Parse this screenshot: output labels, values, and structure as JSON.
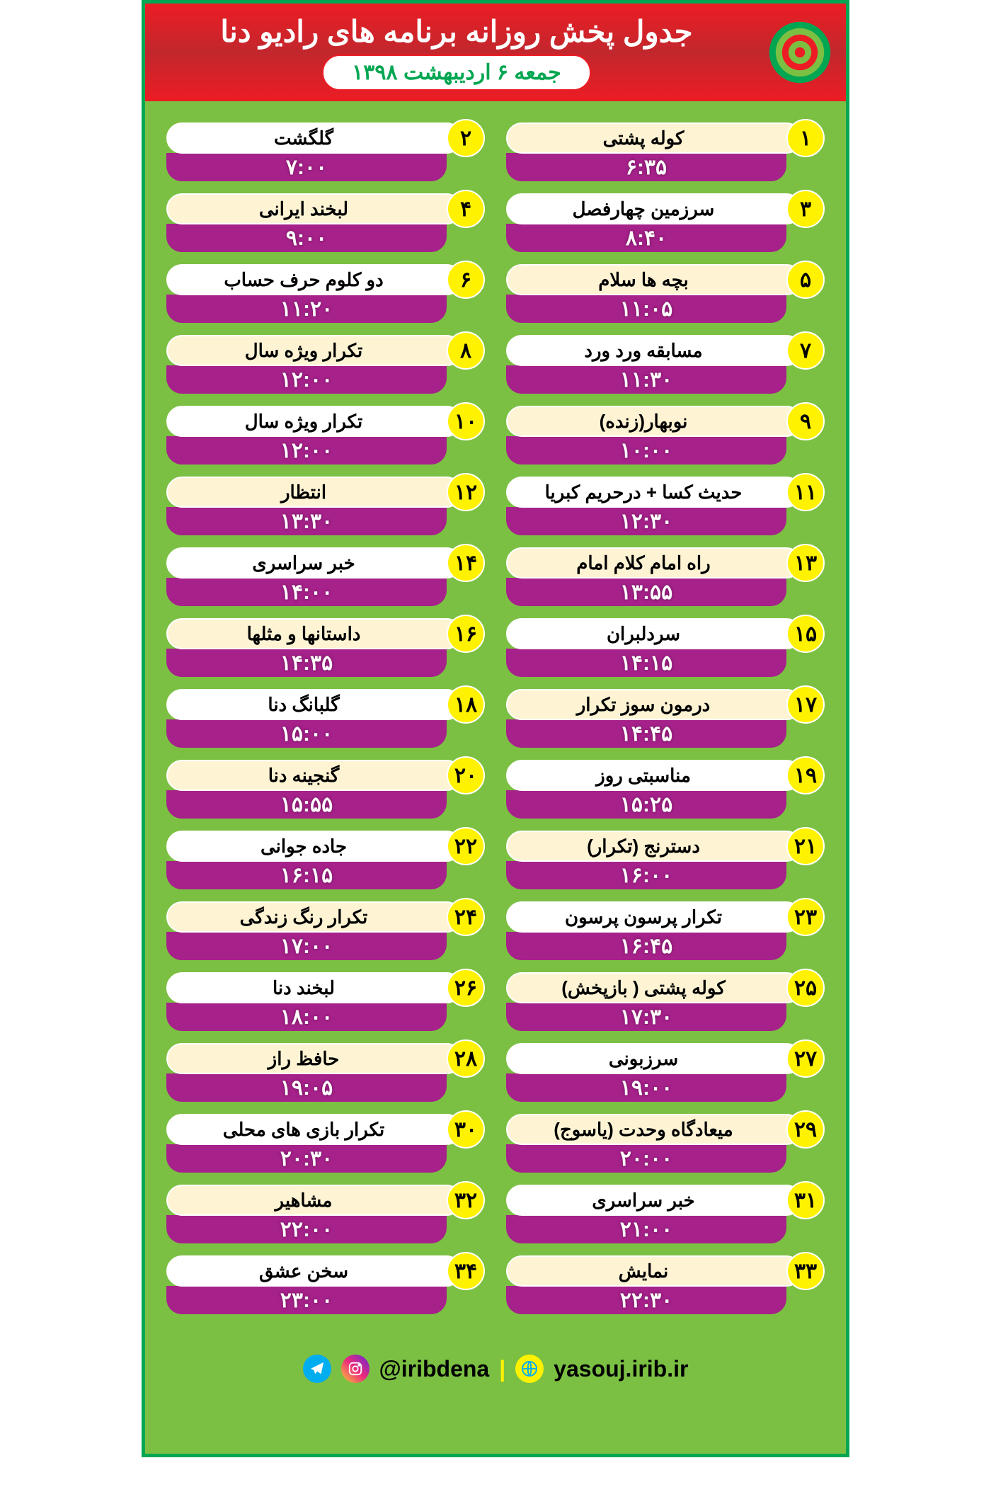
{
  "header": {
    "title": "جدول پخش روزانه برنامه های رادیو دنا",
    "date": "جمعه ۶ اردیبهشت ۱۳۹۸"
  },
  "colors": {
    "background": "#7bc043",
    "border": "#00a651",
    "header_bg": "#ed1c24",
    "number_bg": "#fff200",
    "time_bg": "#a6218a",
    "title_bg": "#ffffff",
    "title_bg_alt": "#fef4d4"
  },
  "schedule_right": [
    {
      "num": "۱",
      "title": "کوله پشتی",
      "time": "۶:۳۵",
      "alt": true
    },
    {
      "num": "۳",
      "title": "سرزمین چهارفصل",
      "time": "۸:۴۰",
      "alt": false
    },
    {
      "num": "۵",
      "title": "بچه ها سلام",
      "time": "۱۱:۰۵",
      "alt": true
    },
    {
      "num": "۷",
      "title": "مسابقه ورد ورد",
      "time": "۱۱:۳۰",
      "alt": false
    },
    {
      "num": "۹",
      "title": "نوبهار(زنده)",
      "time": "۱۰:۰۰",
      "alt": true
    },
    {
      "num": "۱۱",
      "title": "حدیث کسا + درحریم کبریا",
      "time": "۱۲:۳۰",
      "alt": false
    },
    {
      "num": "۱۳",
      "title": "راه امام کلام امام",
      "time": "۱۳:۵۵",
      "alt": true
    },
    {
      "num": "۱۵",
      "title": "سردلبران",
      "time": "۱۴:۱۵",
      "alt": false
    },
    {
      "num": "۱۷",
      "title": "درمون سوز تکرار",
      "time": "۱۴:۴۵",
      "alt": true
    },
    {
      "num": "۱۹",
      "title": "مناسبتی روز",
      "time": "۱۵:۲۵",
      "alt": false
    },
    {
      "num": "۲۱",
      "title": "دسترنج (تکرار)",
      "time": "۱۶:۰۰",
      "alt": true
    },
    {
      "num": "۲۳",
      "title": "تکرار پرسون پرسون",
      "time": "۱۶:۴۵",
      "alt": false
    },
    {
      "num": "۲۵",
      "title": "کوله پشتی ( بازپخش)",
      "time": "۱۷:۳۰",
      "alt": true
    },
    {
      "num": "۲۷",
      "title": "سرزبونی",
      "time": "۱۹:۰۰",
      "alt": false
    },
    {
      "num": "۲۹",
      "title": "میعادگاه وحدت (یاسوج)",
      "time": "۲۰:۰۰",
      "alt": true
    },
    {
      "num": "۳۱",
      "title": "خبر سراسری",
      "time": "۲۱:۰۰",
      "alt": false
    },
    {
      "num": "۳۳",
      "title": "نمایش",
      "time": "۲۲:۳۰",
      "alt": true
    }
  ],
  "schedule_left": [
    {
      "num": "۲",
      "title": "گلگشت",
      "time": "۷:۰۰",
      "alt": false
    },
    {
      "num": "۴",
      "title": "لبخند ایرانی",
      "time": "۹:۰۰",
      "alt": true
    },
    {
      "num": "۶",
      "title": "دو کلوم حرف حساب",
      "time": "۱۱:۲۰",
      "alt": false
    },
    {
      "num": "۸",
      "title": "تکرار  ویژه سال",
      "time": "۱۲:۰۰",
      "alt": true
    },
    {
      "num": "۱۰",
      "title": "تکرار  ویژه سال",
      "time": "۱۲:۰۰",
      "alt": false
    },
    {
      "num": "۱۲",
      "title": "انتظار",
      "time": "۱۳:۳۰",
      "alt": true
    },
    {
      "num": "۱۴",
      "title": "خبر سراسری",
      "time": "۱۴:۰۰",
      "alt": false
    },
    {
      "num": "۱۶",
      "title": "داستانها و مثلها",
      "time": "۱۴:۳۵",
      "alt": true
    },
    {
      "num": "۱۸",
      "title": "گلبانگ دنا",
      "time": "۱۵:۰۰",
      "alt": false
    },
    {
      "num": "۲۰",
      "title": "گنجینه دنا",
      "time": "۱۵:۵۵",
      "alt": true
    },
    {
      "num": "۲۲",
      "title": "جاده جوانی",
      "time": "۱۶:۱۵",
      "alt": false
    },
    {
      "num": "۲۴",
      "title": "تکرار رنگ زندگی",
      "time": "۱۷:۰۰",
      "alt": true
    },
    {
      "num": "۲۶",
      "title": "لبخند دنا",
      "time": "۱۸:۰۰",
      "alt": false
    },
    {
      "num": "۲۸",
      "title": "حافظ راز",
      "time": "۱۹:۰۵",
      "alt": true
    },
    {
      "num": "۳۰",
      "title": "تکرار بازی های محلی",
      "time": "۲۰:۳۰",
      "alt": false
    },
    {
      "num": "۳۲",
      "title": "مشاهیر",
      "time": "۲۲:۰۰",
      "alt": true
    },
    {
      "num": "۳۴",
      "title": "سخن عشق",
      "time": "۲۳:۰۰",
      "alt": false
    }
  ],
  "footer": {
    "handle": "@iribdena",
    "url": "yasouj.irib.ir"
  }
}
